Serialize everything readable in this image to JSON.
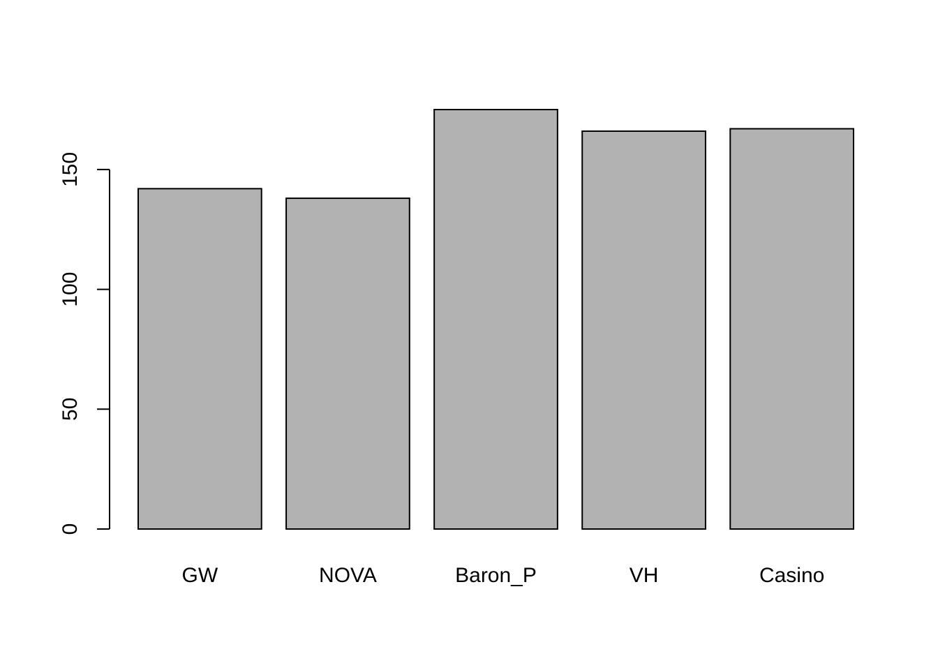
{
  "chart_data": {
    "type": "bar",
    "categories": [
      "GW",
      "NOVA",
      "Baron_P",
      "VH",
      "Casino"
    ],
    "values": [
      142,
      138,
      175,
      166,
      167
    ],
    "title": "",
    "xlabel": "",
    "ylabel": "",
    "ylim": [
      0,
      175
    ],
    "yticks": [
      0,
      50,
      100,
      150
    ],
    "ytick_labels": [
      "0",
      "50",
      "100",
      "150"
    ],
    "grid": false,
    "legend": "none",
    "colors": {
      "bar_fill": "#b2b2b2",
      "bar_stroke": "#000000",
      "axis": "#000000",
      "background": "#ffffff"
    }
  }
}
